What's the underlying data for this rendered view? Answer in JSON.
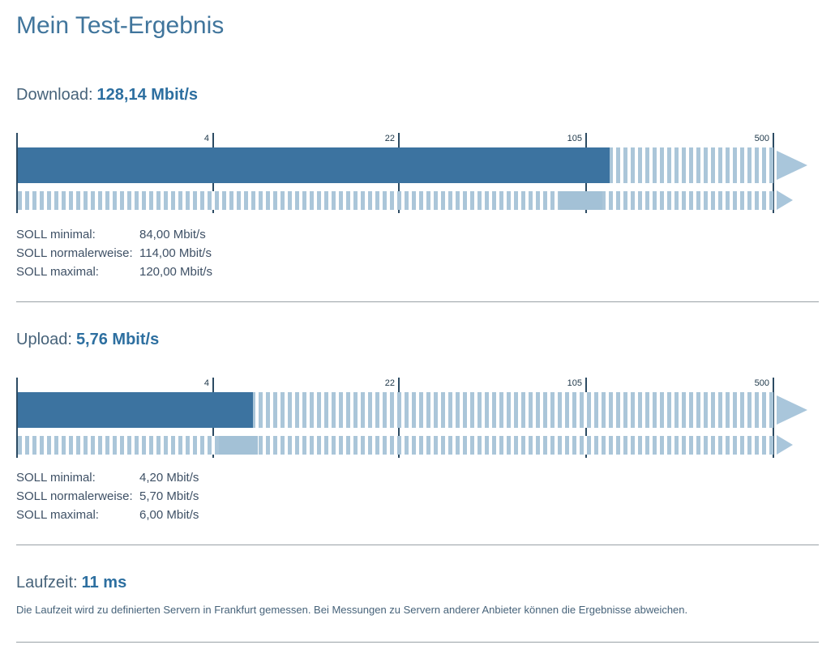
{
  "page": {
    "title": "Mein Test-Ergebnis"
  },
  "download": {
    "heading_label": "Download:",
    "heading_value": "128,14 Mbit/s",
    "soll_rows": [
      {
        "label": "SOLL minimal:",
        "value": "84,00 Mbit/s"
      },
      {
        "label": "SOLL normalerweise:",
        "value": "114,00 Mbit/s"
      },
      {
        "label": "SOLL maximal:",
        "value": "120,00 Mbit/s"
      }
    ]
  },
  "upload": {
    "heading_label": "Upload:",
    "heading_value": "5,76 Mbit/s",
    "soll_rows": [
      {
        "label": "SOLL minimal:",
        "value": "4,20 Mbit/s"
      },
      {
        "label": "SOLL normalerweise:",
        "value": "5,70 Mbit/s"
      },
      {
        "label": "SOLL maximal:",
        "value": "6,00 Mbit/s"
      }
    ]
  },
  "laufzeit": {
    "heading_label": "Laufzeit:",
    "heading_value": "11 ms",
    "note": "Die Laufzeit wird zu definierten Servern in Frankfurt gemessen. Bei Messungen zu Servern anderer Anbieter können die Ergebnisse abweichen."
  },
  "colors": {
    "accent_blue": "#3c73a0",
    "light_blue": "#abc6d9",
    "band_blue": "#a3c1d6",
    "arrow_blue": "#a9c6db",
    "tick_line": "#2c4b63",
    "tick_label": "#1c3648",
    "title_text": "#40759c",
    "value_text": "#2d6fa0",
    "label_text": "#47637a",
    "soll_text": "#3e5065",
    "divider": "#99a1a6"
  },
  "chart_data": [
    {
      "type": "bar",
      "name": "download-gauge",
      "title": "Download",
      "unit": "Mbit/s",
      "scale": "log",
      "axis_ticks": [
        4,
        22,
        105,
        500
      ],
      "xlim": [
        0,
        500
      ],
      "measured": 128.14,
      "soll_minimal": 84.0,
      "soll_normalerweise": 114.0,
      "soll_maximal": 120.0,
      "expected_band": [
        84.0,
        120.0
      ],
      "overflow_arrow": true,
      "grid": false,
      "legend": false
    },
    {
      "type": "bar",
      "name": "upload-gauge",
      "title": "Upload",
      "unit": "Mbit/s",
      "scale": "log",
      "axis_ticks": [
        4,
        22,
        105,
        500
      ],
      "xlim": [
        0,
        500
      ],
      "measured": 5.76,
      "soll_minimal": 4.2,
      "soll_normalerweise": 5.7,
      "soll_maximal": 6.0,
      "expected_band": [
        4.2,
        6.0
      ],
      "overflow_arrow": true,
      "grid": false,
      "legend": false
    }
  ]
}
